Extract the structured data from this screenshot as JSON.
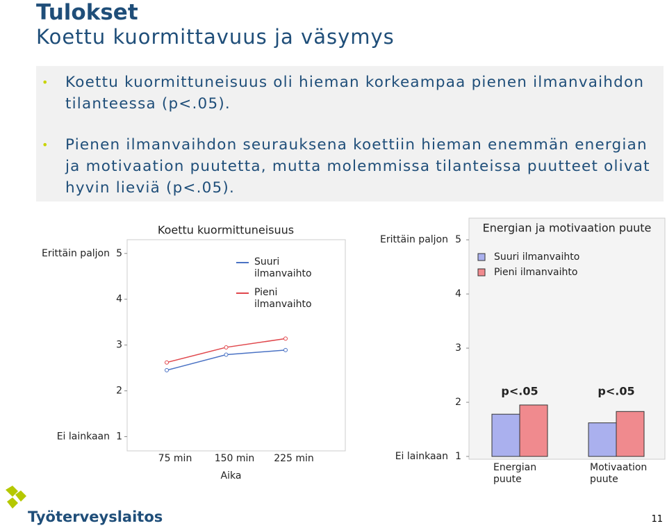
{
  "header": {
    "title": "Tulokset",
    "subtitle": "Koettu kuormittavuus ja väsymys"
  },
  "bullets": [
    "Koettu kuormittuneisuus oli hieman korkeampaa pienen ilmanvaihdon tilanteessa (p<.05).",
    "Pienen ilmanvaihdon seurauksena koettiin hieman enemmän energian ja motivaation puutetta, mutta molemmissa tilanteissa puutteet olivat hyvin lieviä (p<.05)."
  ],
  "chart_data": [
    {
      "type": "line",
      "title": "Koettu kuormittuneisuus",
      "x_label": "Aika",
      "categories": [
        "75 min",
        "150 min",
        "225 min"
      ],
      "series": [
        {
          "name": "Suuri ilmanvaihto",
          "color": "#4a72c4",
          "values": [
            2.45,
            2.79,
            2.89
          ]
        },
        {
          "name": "Pieni ilmanvaihto",
          "color": "#e0474c",
          "values": [
            2.62,
            2.95,
            3.14
          ]
        }
      ],
      "ylim": [
        0.75,
        5.3
      ],
      "yticks": [
        1,
        2,
        3,
        4,
        5
      ],
      "scale_labels": [
        "Erittäin paljon",
        "Ei lainkaan"
      ]
    },
    {
      "type": "bar",
      "title": "Energian ja motivaation puute",
      "categories": [
        "Energian puute",
        "Motivaation puute"
      ],
      "series": [
        {
          "name": "Suuri ilmanvaihto",
          "color": "#aab0ee",
          "values": [
            1.78,
            1.62
          ]
        },
        {
          "name": "Pieni ilmanvaihto",
          "color": "#f08a8e",
          "values": [
            1.95,
            1.83
          ]
        }
      ],
      "ylim": [
        1,
        5.4
      ],
      "yticks": [
        1,
        2,
        3,
        4,
        5
      ],
      "scale_labels": [
        "Erittäin paljon",
        "Ei lainkaan"
      ],
      "annotations": [
        "p<.05",
        "p<.05"
      ]
    }
  ],
  "footer": {
    "logo": "Työterveyslaitos",
    "page": "11"
  }
}
